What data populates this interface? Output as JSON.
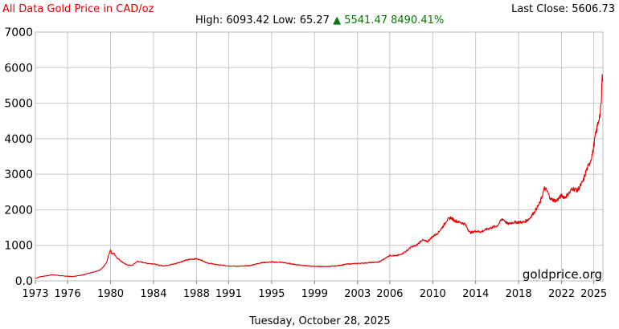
{
  "header": {
    "title": "All Data Gold Price in CAD/oz",
    "high_label": "High:",
    "high_value": "6093.42",
    "low_label": "Low:",
    "low_value": "65.27",
    "change_arrow": "▲",
    "change_value": "5541.47",
    "change_percent": "8490.41%",
    "last_close_label": "Last Close:",
    "last_close_value": "5606.73"
  },
  "watermark": "goldprice.org",
  "footer_date": "Tuesday, October 28, 2025",
  "colors": {
    "line": "#e00000",
    "title": "#e00000",
    "change": "#007a00",
    "grid": "#c8c8c8"
  },
  "chart_data": {
    "type": "line",
    "title": "All Data Gold Price in CAD/oz",
    "xlabel": "",
    "ylabel": "",
    "xlim": [
      1973,
      2025.85
    ],
    "ylim": [
      0,
      7000
    ],
    "x_ticks": [
      "1973",
      "1976",
      "1980",
      "1984",
      "1988",
      "1991",
      "1995",
      "1999",
      "2003",
      "2006",
      "2010",
      "2014",
      "2018",
      "2022",
      "2025"
    ],
    "y_ticks": [
      "0.0",
      "1000",
      "2000",
      "3000",
      "4000",
      "5000",
      "6000",
      "7000"
    ],
    "grid": true,
    "series": [
      {
        "x": [
          1973.0,
          1973.5,
          1974.0,
          1974.5,
          1975.0,
          1975.5,
          1976.0,
          1976.5,
          1977.0,
          1977.5,
          1978.0,
          1978.5,
          1979.0,
          1979.3,
          1979.6,
          1979.8,
          1980.0,
          1980.1,
          1980.3,
          1980.6,
          1981.0,
          1981.5,
          1982.0,
          1982.5,
          1983.0,
          1983.5,
          1984.0,
          1984.5,
          1985.0,
          1985.5,
          1986.0,
          1986.5,
          1987.0,
          1987.5,
          1988.0,
          1988.5,
          1989.0,
          1989.5,
          1990.0,
          1990.5,
          1991.0,
          1992.0,
          1993.0,
          1994.0,
          1995.0,
          1996.0,
          1997.0,
          1998.0,
          1999.0,
          2000.0,
          2001.0,
          2002.0,
          2003.0,
          2004.0,
          2005.0,
          2005.5,
          2006.0,
          2006.5,
          2007.0,
          2007.5,
          2008.0,
          2008.5,
          2009.0,
          2009.5,
          2010.0,
          2010.5,
          2011.0,
          2011.3,
          2011.7,
          2012.0,
          2012.5,
          2013.0,
          2013.5,
          2014.0,
          2014.5,
          2015.0,
          2015.5,
          2016.0,
          2016.5,
          2017.0,
          2017.5,
          2018.0,
          2018.5,
          2019.0,
          2019.5,
          2020.0,
          2020.4,
          2020.6,
          2021.0,
          2021.5,
          2022.0,
          2022.3,
          2022.8,
          2023.0,
          2023.5,
          2024.0,
          2024.3,
          2024.6,
          2024.9,
          2025.1,
          2025.3,
          2025.5,
          2025.6,
          2025.7,
          2025.78,
          2025.82
        ],
        "y": [
          70,
          120,
          140,
          170,
          160,
          140,
          130,
          120,
          150,
          170,
          220,
          250,
          300,
          380,
          500,
          700,
          880,
          750,
          780,
          650,
          550,
          450,
          430,
          550,
          520,
          490,
          480,
          440,
          420,
          450,
          480,
          530,
          580,
          610,
          620,
          580,
          500,
          480,
          450,
          440,
          420,
          410,
          430,
          510,
          530,
          520,
          470,
          430,
          410,
          400,
          420,
          470,
          490,
          510,
          530,
          620,
          720,
          700,
          740,
          830,
          950,
          1000,
          1150,
          1100,
          1250,
          1350,
          1550,
          1700,
          1780,
          1700,
          1650,
          1600,
          1350,
          1400,
          1380,
          1450,
          1500,
          1550,
          1750,
          1600,
          1650,
          1650,
          1650,
          1750,
          1950,
          2200,
          2600,
          2550,
          2300,
          2250,
          2400,
          2350,
          2500,
          2600,
          2550,
          2800,
          3100,
          3300,
          3600,
          4000,
          4300,
          4600,
          4700,
          5000,
          5800,
          5606.73
        ]
      }
    ]
  }
}
